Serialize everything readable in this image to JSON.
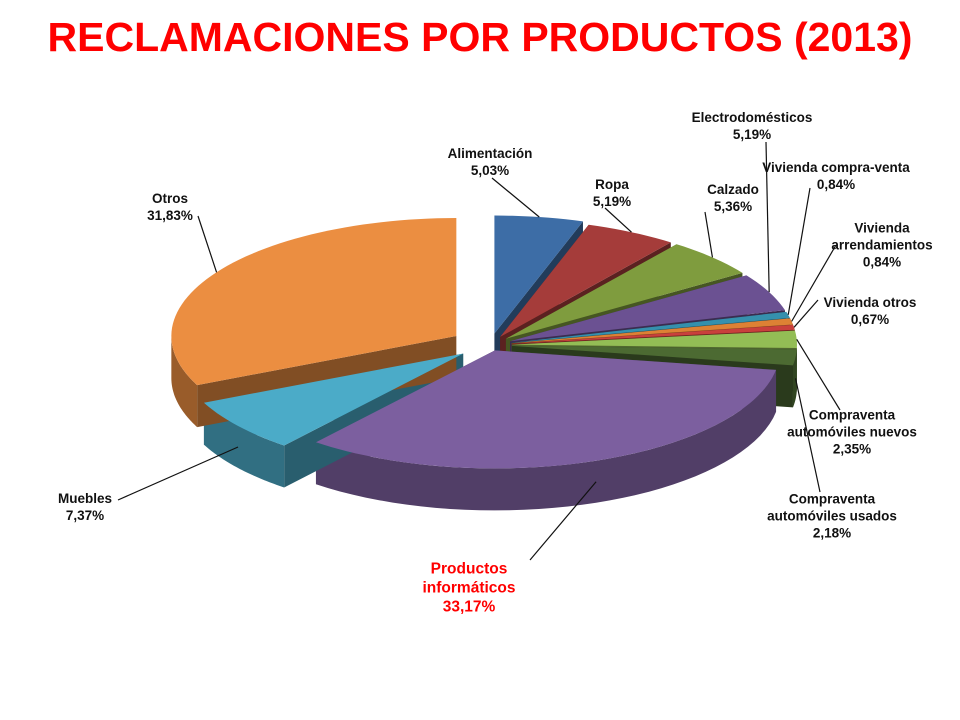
{
  "chart_data": {
    "type": "pie3d",
    "title": "RECLAMACIONES POR PRODUCTOS (2013)",
    "categories": [
      "Alimentación",
      "Ropa",
      "Calzado",
      "Electrodomésticos",
      "Vivienda compra-venta",
      "Vivienda arrendamientos",
      "Vivienda otros",
      "Compraventa automóviles nuevos",
      "Compraventa automóviles usados",
      "Productos informáticos",
      "Muebles",
      "Otros"
    ],
    "values": [
      5.03,
      5.19,
      5.36,
      5.19,
      0.84,
      0.84,
      0.67,
      2.35,
      2.18,
      33.17,
      7.37,
      31.83
    ],
    "value_labels": [
      "5,03%",
      "5,19%",
      "5,36%",
      "5,19%",
      "0,84%",
      "0,84%",
      "0,67%",
      "2,35%",
      "2,18%",
      "33,17%",
      "7,37%",
      "31,83%"
    ],
    "colors": [
      "#3d6da6",
      "#a53c3a",
      "#7f9c3e",
      "#6b5192",
      "#3590ad",
      "#dd8134",
      "#c9403c",
      "#93bd55",
      "#4c6a32",
      "#7c5f9f",
      "#4babc8",
      "#eb8e41"
    ]
  }
}
